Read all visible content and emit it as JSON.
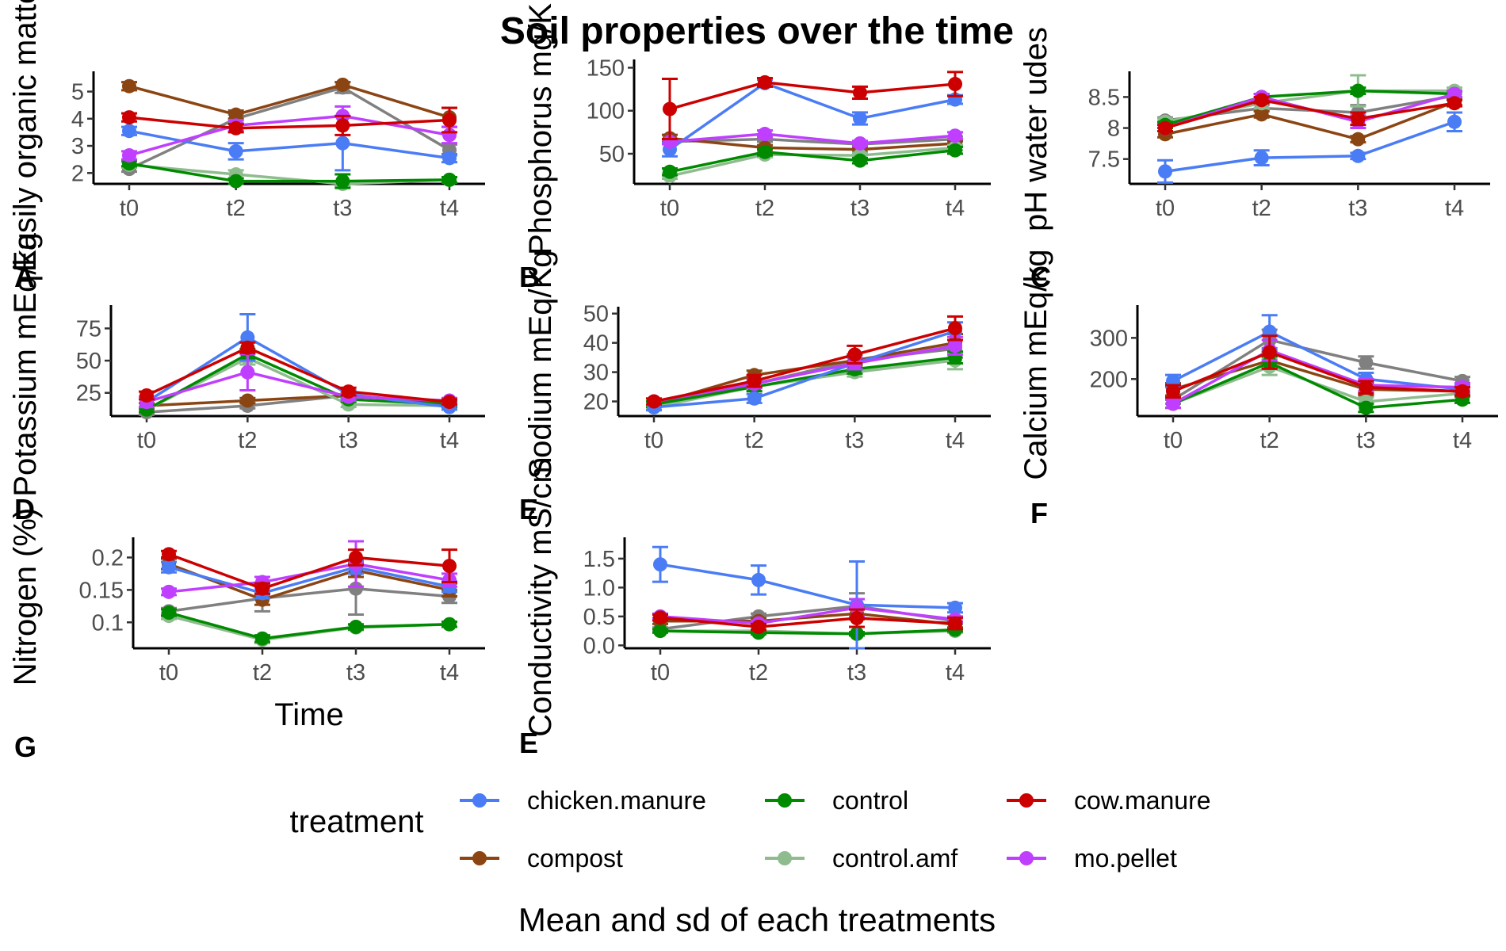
{
  "chart_data": {
    "type": "line",
    "title": "Soil properties over the time",
    "caption": "Mean and sd of each treatments",
    "xlabel": "Time",
    "legend": {
      "title": "treatment",
      "position": "bottom",
      "items": [
        {
          "name": "chicken.manure",
          "color": "#4a7cf5"
        },
        {
          "name": "control",
          "color": "#008a00"
        },
        {
          "name": "cow.manure",
          "color": "#cc0000"
        },
        {
          "name": "compost",
          "color": "#8b4513"
        },
        {
          "name": "control.amf",
          "color": "#8fbc8f"
        },
        {
          "name": "mo.pellet",
          "color": "#bf3eff"
        }
      ]
    },
    "series_order": [
      "compost",
      "control.amf",
      "control",
      "chicken.manure",
      "mo.pellet",
      "cow.manure"
    ],
    "categories": [
      "t0",
      "t2",
      "t3",
      "t4"
    ],
    "panels": [
      {
        "letter": "A",
        "ylabel": "Easily organic matter",
        "ylim": [
          1.6,
          5.6
        ],
        "yticks": [
          2,
          3,
          4,
          5
        ],
        "series": {
          "chicken.manure": {
            "values": [
              3.55,
              2.8,
              3.1,
              2.55
            ],
            "sd": [
              0.15,
              0.3,
              1.0,
              0.15
            ]
          },
          "control": {
            "values": [
              2.35,
              1.7,
              1.7,
              1.75
            ],
            "sd": [
              0.1,
              0.1,
              0.25,
              0.1
            ]
          },
          "cow.manure": {
            "values": [
              4.05,
              3.65,
              3.75,
              3.95
            ],
            "sd": [
              0.15,
              0.15,
              0.35,
              0.45
            ]
          },
          "compost": {
            "values": [
              5.2,
              4.15,
              5.25,
              4.05
            ],
            "sd": [
              0.15,
              0.15,
              0.1,
              0.35
            ]
          },
          "control.amf": {
            "values": [
              2.3,
              1.95,
              1.6,
              1.75
            ],
            "sd": [
              0.1,
              0.15,
              0.1,
              0.1
            ]
          },
          "mo.pellet": {
            "values": [
              2.65,
              3.75,
              4.1,
              3.4
            ],
            "sd": [
              0.15,
              0.2,
              0.35,
              0.3
            ]
          }
        },
        "extra_series": {
          "values": [
            2.15,
            4.0,
            5.15,
            2.85
          ],
          "sd": [
            0.1,
            0.15,
            0.2,
            0.2
          ],
          "color": "#808080"
        }
      },
      {
        "letter": "B",
        "ylabel": "Phosphorus mg/Kg",
        "ylim": [
          15,
          155
        ],
        "yticks": [
          50,
          100,
          150
        ],
        "series": {
          "chicken.manure": {
            "values": [
              55,
              132,
              91,
              113
            ],
            "sd": [
              8,
              4,
              7,
              5
            ]
          },
          "control": {
            "values": [
              29,
              52,
              42,
              54
            ],
            "sd": [
              4,
              4,
              3,
              4
            ]
          },
          "cow.manure": {
            "values": [
              102,
              133,
              121,
              131
            ],
            "sd": [
              35,
              5,
              7,
              14
            ]
          },
          "compost": {
            "values": [
              68,
              57,
              55,
              62
            ],
            "sd": [
              4,
              3,
              3,
              3
            ]
          },
          "control.amf": {
            "values": [
              24,
              49,
              48,
              57
            ],
            "sd": [
              3,
              3,
              3,
              3
            ]
          },
          "mo.pellet": {
            "values": [
              64,
              73,
              62,
              71
            ],
            "sd": [
              3,
              4,
              3,
              4
            ]
          }
        },
        "extra_series": {
          "values": [
            64,
            67,
            61,
            67
          ],
          "sd": [
            3,
            3,
            3,
            3
          ],
          "color": "#808080"
        }
      },
      {
        "letter": "C",
        "ylabel": "pH water udes",
        "ylim": [
          7.1,
          8.85
        ],
        "yticks": [
          7.5,
          8.0,
          8.5
        ],
        "series": {
          "chicken.manure": {
            "values": [
              7.3,
              7.52,
              7.55,
              8.1
            ],
            "sd": [
              0.18,
              0.12,
              0.05,
              0.15
            ]
          },
          "control": {
            "values": [
              8.05,
              8.5,
              8.6,
              8.55
            ],
            "sd": [
              0.05,
              0.05,
              0.05,
              0.05
            ]
          },
          "cow.manure": {
            "values": [
              8.0,
              8.45,
              8.15,
              8.4
            ],
            "sd": [
              0.05,
              0.05,
              0.1,
              0.05
            ]
          },
          "compost": {
            "values": [
              7.9,
              8.22,
              7.82,
              8.42
            ],
            "sd": [
              0.05,
              0.05,
              0.05,
              0.05
            ]
          },
          "control.amf": {
            "values": [
              8.1,
              8.4,
              8.6,
              8.6
            ],
            "sd": [
              0.05,
              0.08,
              0.25,
              0.05
            ]
          },
          "mo.pellet": {
            "values": [
              8.0,
              8.5,
              8.1,
              8.55
            ],
            "sd": [
              0.05,
              0.05,
              0.1,
              0.05
            ]
          }
        },
        "extra_series": {
          "values": [
            8.12,
            8.32,
            8.25,
            8.52
          ],
          "sd": [
            0.05,
            0.05,
            0.12,
            0.05
          ],
          "color": "#808080"
        }
      },
      {
        "letter": "D",
        "ylabel": "Potassium mEq/kg",
        "ylim": [
          7,
          90
        ],
        "yticks": [
          25,
          50,
          75
        ],
        "series": {
          "chicken.manure": {
            "values": [
              18,
              68,
              24,
              14
            ],
            "sd": [
              4,
              18,
              3,
              2
            ]
          },
          "control": {
            "values": [
              12,
              55,
              20,
              16
            ],
            "sd": [
              2,
              4,
              2,
              2
            ]
          },
          "cow.manure": {
            "values": [
              23,
              60,
              26,
              18
            ],
            "sd": [
              3,
              4,
              3,
              2
            ]
          },
          "compost": {
            "values": [
              15,
              19,
              23,
              17
            ],
            "sd": [
              2,
              2,
              2,
              2
            ]
          },
          "control.amf": {
            "values": [
              12,
              52,
              16,
              15
            ],
            "sd": [
              2,
              5,
              2,
              2
            ]
          },
          "mo.pellet": {
            "values": [
              18,
              41,
              22,
              19
            ],
            "sd": [
              4,
              14,
              3,
              2
            ]
          }
        },
        "extra_series": {
          "values": [
            10,
            15,
            23,
            16
          ],
          "sd": [
            2,
            2,
            2,
            2
          ],
          "color": "#808080"
        }
      },
      {
        "letter": "E",
        "ylabel": "Sodium mEq/Kg",
        "ylim": [
          15,
          51
        ],
        "yticks": [
          20,
          30,
          40,
          50
        ],
        "series": {
          "chicken.manure": {
            "values": [
              18,
              21,
              33,
              44
            ],
            "sd": [
              1,
              1.5,
              2,
              3
            ]
          },
          "control": {
            "values": [
              19,
              25,
              31,
              35
            ],
            "sd": [
              1,
              1.5,
              1.5,
              2
            ]
          },
          "cow.manure": {
            "values": [
              20,
              27,
              36,
              45
            ],
            "sd": [
              1,
              2,
              3,
              4
            ]
          },
          "compost": {
            "values": [
              19,
              29,
              34,
              40
            ],
            "sd": [
              1,
              1.5,
              2,
              3
            ]
          },
          "control.amf": {
            "values": [
              18,
              25,
              30,
              34
            ],
            "sd": [
              1,
              1.5,
              1.5,
              3
            ]
          },
          "mo.pellet": {
            "values": [
              20,
              26,
              33,
              39
            ],
            "sd": [
              1,
              1.5,
              2,
              3
            ]
          }
        },
        "extra_series": {
          "values": [
            19,
            26,
            34,
            38
          ],
          "sd": [
            1,
            1.5,
            2,
            3
          ],
          "color": "#808080"
        }
      },
      {
        "letter": "F",
        "ylabel": "Calcium mEq/kg",
        "ylim": [
          110,
          370
        ],
        "yticks": [
          200,
          300
        ],
        "series": {
          "chicken.manure": {
            "values": [
              195,
              315,
              200,
              175
            ],
            "sd": [
              15,
              40,
              15,
              10
            ]
          },
          "control": {
            "values": [
              140,
              240,
              130,
              150
            ],
            "sd": [
              10,
              15,
              10,
              8
            ]
          },
          "cow.manure": {
            "values": [
              170,
              265,
              180,
              170
            ],
            "sd": [
              15,
              40,
              15,
              10
            ]
          },
          "compost": {
            "values": [
              175,
              245,
              175,
              170
            ],
            "sd": [
              15,
              20,
              15,
              10
            ]
          },
          "control.amf": {
            "values": [
              140,
              230,
              145,
              165
            ],
            "sd": [
              10,
              20,
              10,
              8
            ]
          },
          "mo.pellet": {
            "values": [
              140,
              270,
              185,
              180
            ],
            "sd": [
              10,
              25,
              15,
              10
            ]
          }
        },
        "extra_series": {
          "values": [
            150,
            295,
            240,
            195
          ],
          "sd": [
            10,
            25,
            15,
            10
          ],
          "color": "#808080"
        }
      },
      {
        "letter": "G",
        "ylabel": "Nitrogen (%)",
        "ylim": [
          0.06,
          0.225
        ],
        "yticks": [
          0.1,
          0.15,
          0.2
        ],
        "series": {
          "chicken.manure": {
            "values": [
              0.185,
              0.145,
              0.185,
              0.155
            ],
            "sd": [
              0.008,
              0.008,
              0.01,
              0.008
            ]
          },
          "control": {
            "values": [
              0.115,
              0.075,
              0.093,
              0.097
            ],
            "sd": [
              0.005,
              0.005,
              0.004,
              0.004
            ]
          },
          "cow.manure": {
            "values": [
              0.205,
              0.152,
              0.2,
              0.187
            ],
            "sd": [
              0.005,
              0.008,
              0.012,
              0.025
            ]
          },
          "compost": {
            "values": [
              0.19,
              0.135,
              0.18,
              0.15
            ],
            "sd": [
              0.008,
              0.008,
              0.01,
              0.01
            ]
          },
          "control.amf": {
            "values": [
              0.11,
              0.073,
              0.092,
              0.097
            ],
            "sd": [
              0.005,
              0.005,
              0.004,
              0.004
            ]
          },
          "mo.pellet": {
            "values": [
              0.147,
              0.162,
              0.19,
              0.165
            ],
            "sd": [
              0.005,
              0.008,
              0.035,
              0.01
            ]
          }
        },
        "extra_series": {
          "values": [
            0.117,
            0.137,
            0.152,
            0.14
          ],
          "sd": [
            0.005,
            0.02,
            0.04,
            0.01
          ],
          "color": "#808080"
        }
      },
      {
        "letter": "E",
        "ylabel": "Conductivity mS/cm",
        "ylim": [
          -0.05,
          1.8
        ],
        "yticks": [
          0.0,
          0.5,
          1.0,
          1.5
        ],
        "yticklabels": [
          "0.0",
          "0.5",
          "1.0",
          "1.5"
        ],
        "series": {
          "chicken.manure": {
            "values": [
              1.4,
              1.13,
              0.7,
              0.65
            ],
            "sd": [
              0.3,
              0.25,
              0.75,
              0.08
            ]
          },
          "control": {
            "values": [
              0.25,
              0.22,
              0.2,
              0.27
            ],
            "sd": [
              0.03,
              0.03,
              0.03,
              0.03
            ]
          },
          "cow.manure": {
            "values": [
              0.48,
              0.32,
              0.47,
              0.38
            ],
            "sd": [
              0.05,
              0.05,
              0.15,
              0.1
            ]
          },
          "compost": {
            "values": [
              0.42,
              0.42,
              0.55,
              0.36
            ],
            "sd": [
              0.05,
              0.05,
              0.1,
              0.05
            ]
          },
          "control.amf": {
            "values": [
              0.25,
              0.25,
              0.2,
              0.25
            ],
            "sd": [
              0.03,
              0.03,
              0.03,
              0.03
            ]
          },
          "mo.pellet": {
            "values": [
              0.5,
              0.38,
              0.65,
              0.45
            ],
            "sd": [
              0.05,
              0.05,
              0.15,
              0.05
            ]
          }
        },
        "extra_series": {
          "values": [
            0.28,
            0.5,
            0.68,
            0.42
          ],
          "sd": [
            0.03,
            0.05,
            0.22,
            0.05
          ],
          "color": "#808080"
        }
      }
    ],
    "axis_titles_display": [
      "Easily organic matte",
      "Phosphorus mg/K",
      "pH water udes",
      "Potassium mEq/kg",
      "Sodium mEq/Kg",
      "Calcium mEq/kg",
      "Nitrogen (%)",
      "Conductivity mS/cm"
    ],
    "bottom_axis_titles_display": [
      "Potassium mEq/kg",
      "Sodium mEq/Kg",
      "Calcium mEq/kg"
    ]
  }
}
